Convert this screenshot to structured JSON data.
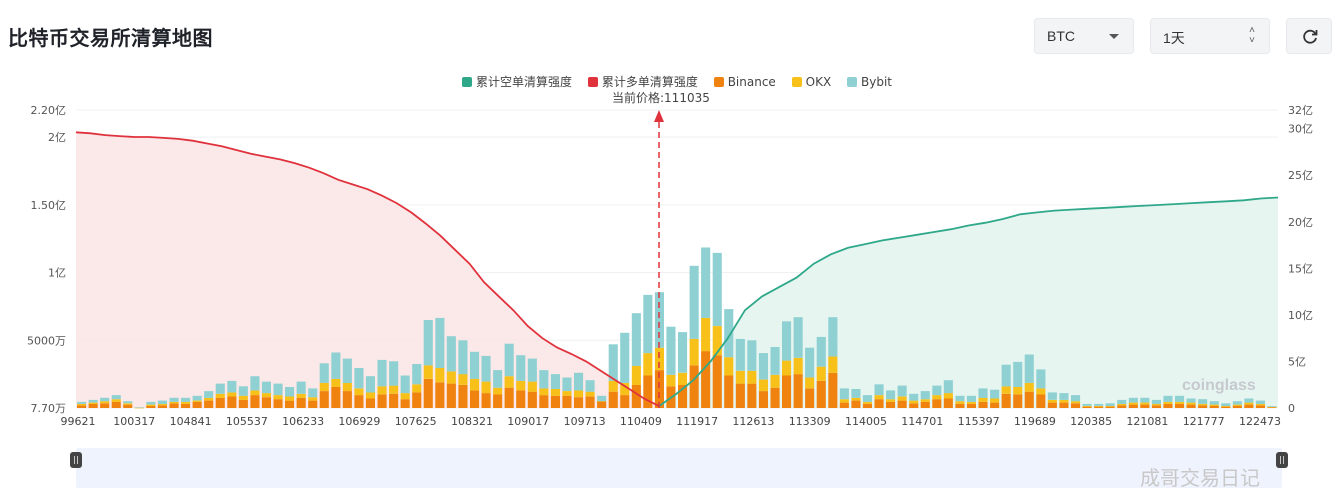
{
  "page": {
    "title": "比特币交易所清算地图",
    "coin_select": {
      "value": "BTC"
    },
    "range_select": {
      "value": "1天"
    },
    "refresh_icon": "refresh-icon",
    "current_price_label": "当前价格:",
    "current_price_value": "111035",
    "logo_text": "coinglass",
    "watermark": "成哥交易日记"
  },
  "colors": {
    "short_cum": "#2fa88a",
    "long_cum": "#e0323c",
    "binance": "#f0830f",
    "okx": "#f7c11a",
    "bybit": "#8fd1d3"
  },
  "chart_data": {
    "type": "bar",
    "title": "",
    "legend": [
      "累计空单清算强度",
      "累计多单清算强度",
      "Binance",
      "OKX",
      "Bybit"
    ],
    "legend_placement": "top-center",
    "x_ticks": [
      "99621",
      "100317",
      "104841",
      "105537",
      "106233",
      "106929",
      "107625",
      "108321",
      "109017",
      "109713",
      "110409",
      "111917",
      "112613",
      "113309",
      "114005",
      "114701",
      "115397",
      "119689",
      "120385",
      "121081",
      "121777",
      "122473"
    ],
    "left_axis_ticks": [
      "2.20亿",
      "2亿",
      "1.50亿",
      "1亿",
      "5000万",
      "7.70万"
    ],
    "right_axis_ticks": [
      "32亿",
      "30亿",
      "25亿",
      "20亿",
      "15亿",
      "10亿",
      "5亿",
      "0"
    ],
    "current_price": 111035,
    "units_note": "bar values in 万 (left axis), cumulative lines in 亿 (right axis)",
    "grid": true,
    "ylim_left": [
      7.7,
      22000
    ],
    "ylim_right": [
      0,
      32
    ],
    "bars": {
      "binance": [
        200,
        300,
        350,
        450,
        250,
        20,
        150,
        200,
        350,
        300,
        450,
        550,
        750,
        850,
        600,
        950,
        800,
        650,
        550,
        750,
        550,
        1250,
        1550,
        1250,
        950,
        700,
        1000,
        1050,
        650,
        1150,
        2150,
        1900,
        1800,
        1700,
        1300,
        1100,
        1000,
        1500,
        1300,
        1200,
        950,
        900,
        900,
        800,
        850,
        500,
        1200,
        950,
        1700,
        2400,
        2800,
        1600,
        1700,
        3150,
        4200,
        3900,
        2400,
        1800,
        1800,
        1250,
        1500,
        2400,
        2500,
        1450,
        2000,
        2600,
        400,
        550,
        300,
        650,
        450,
        550,
        350,
        450,
        650,
        700,
        300,
        300,
        450,
        400,
        1050,
        1000,
        1200,
        1000,
        400,
        400,
        350,
        100,
        100,
        100,
        200,
        250,
        250,
        200,
        300,
        300,
        250,
        200,
        150,
        100,
        150,
        250,
        200,
        50
      ],
      "okx": [
        100,
        100,
        150,
        200,
        100,
        0,
        100,
        100,
        100,
        150,
        100,
        200,
        300,
        300,
        300,
        350,
        300,
        300,
        300,
        300,
        250,
        600,
        600,
        600,
        500,
        450,
        600,
        600,
        450,
        600,
        1000,
        1050,
        900,
        800,
        850,
        850,
        500,
        850,
        700,
        750,
        500,
        500,
        350,
        500,
        350,
        0,
        800,
        900,
        1400,
        1650,
        1650,
        850,
        900,
        1950,
        2450,
        2150,
        1350,
        950,
        950,
        850,
        950,
        1100,
        1200,
        800,
        1050,
        1200,
        250,
        200,
        150,
        300,
        200,
        300,
        200,
        200,
        300,
        400,
        200,
        150,
        300,
        300,
        550,
        550,
        650,
        450,
        200,
        200,
        150,
        50,
        50,
        50,
        100,
        150,
        150,
        100,
        150,
        150,
        150,
        100,
        100,
        50,
        100,
        150,
        100,
        30
      ],
      "bybit": [
        150,
        200,
        250,
        300,
        150,
        30,
        200,
        250,
        300,
        300,
        350,
        500,
        750,
        850,
        700,
        1050,
        850,
        850,
        700,
        900,
        650,
        1450,
        1950,
        1800,
        1500,
        1200,
        1950,
        1800,
        1300,
        1500,
        3350,
        3700,
        2600,
        2500,
        2000,
        1900,
        1300,
        2400,
        1900,
        1700,
        1350,
        1100,
        1000,
        1300,
        850,
        400,
        2700,
        3700,
        3900,
        4300,
        4100,
        3550,
        3000,
        5400,
        5200,
        5400,
        3550,
        2350,
        2250,
        1950,
        2050,
        2900,
        3000,
        2200,
        2200,
        2900,
        800,
        650,
        500,
        800,
        650,
        800,
        500,
        600,
        700,
        950,
        400,
        450,
        700,
        650,
        1600,
        1850,
        2100,
        1400,
        550,
        500,
        450,
        150,
        150,
        200,
        300,
        350,
        350,
        300,
        450,
        450,
        300,
        350,
        250,
        200,
        250,
        300,
        250,
        60
      ]
    },
    "long_cum_line_yi": [
      29.6,
      29.5,
      29.3,
      29.2,
      29.1,
      29.1,
      29.0,
      28.9,
      28.7,
      28.4,
      28.1,
      27.7,
      27.3,
      27.0,
      26.7,
      26.3,
      25.8,
      25.2,
      24.5,
      24.0,
      23.5,
      22.8,
      22.0,
      21.0,
      19.8,
      18.5,
      17.0,
      15.5,
      13.5,
      12.0,
      10.5,
      8.8,
      7.5,
      6.5,
      5.8,
      5.0,
      4.0,
      3.0,
      2.0,
      1.0,
      0.2
    ],
    "short_cum_line_yi": [
      0.2,
      1.5,
      3.0,
      5.0,
      7.5,
      10.5,
      12.0,
      13.0,
      14.0,
      15.5,
      16.5,
      17.2,
      17.6,
      18.0,
      18.3,
      18.6,
      18.9,
      19.2,
      19.6,
      19.9,
      20.3,
      20.8,
      21.0,
      21.2,
      21.3,
      21.4,
      21.5,
      21.6,
      21.7,
      21.8,
      21.9,
      22.0,
      22.1,
      22.2,
      22.3,
      22.5,
      22.6
    ]
  }
}
